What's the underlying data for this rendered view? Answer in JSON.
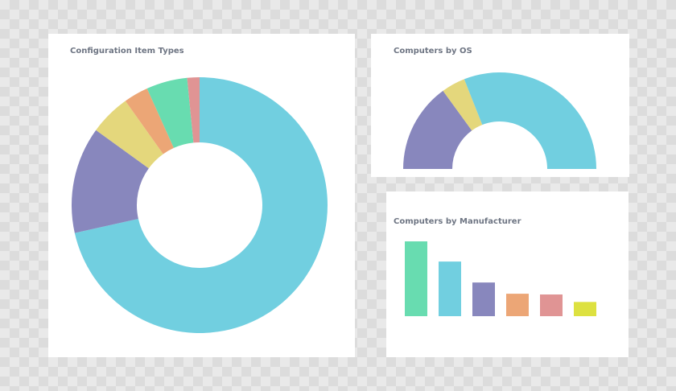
{
  "chart_data": [
    {
      "type": "pie",
      "title": "Configuration Item Types",
      "series": [
        {
          "value": 69,
          "color": "#71cfe0"
        },
        {
          "value": 13,
          "color": "#8887bd"
        },
        {
          "value": 5,
          "color": "#e4d77c"
        },
        {
          "value": 3,
          "color": "#eca676"
        },
        {
          "value": 5,
          "color": "#68dcb0"
        },
        {
          "value": 1.5,
          "color": "#e09494"
        }
      ],
      "hole": true
    },
    {
      "type": "pie",
      "title": "Computers by OS",
      "series": [
        {
          "value": 30,
          "color": "#8887bd"
        },
        {
          "value": 8,
          "color": "#e4d77c"
        },
        {
          "value": 62,
          "color": "#71cfe0"
        }
      ],
      "semi_circle": true,
      "hole": true
    },
    {
      "type": "bar",
      "title": "Computers by Manufacturer",
      "values": [
        100,
        73,
        45,
        30,
        29,
        19
      ],
      "colors": [
        "#68dcb0",
        "#71cfe0",
        "#8887bd",
        "#eca676",
        "#e09494",
        "#dde140"
      ],
      "ylim": [
        0,
        100
      ]
    }
  ]
}
